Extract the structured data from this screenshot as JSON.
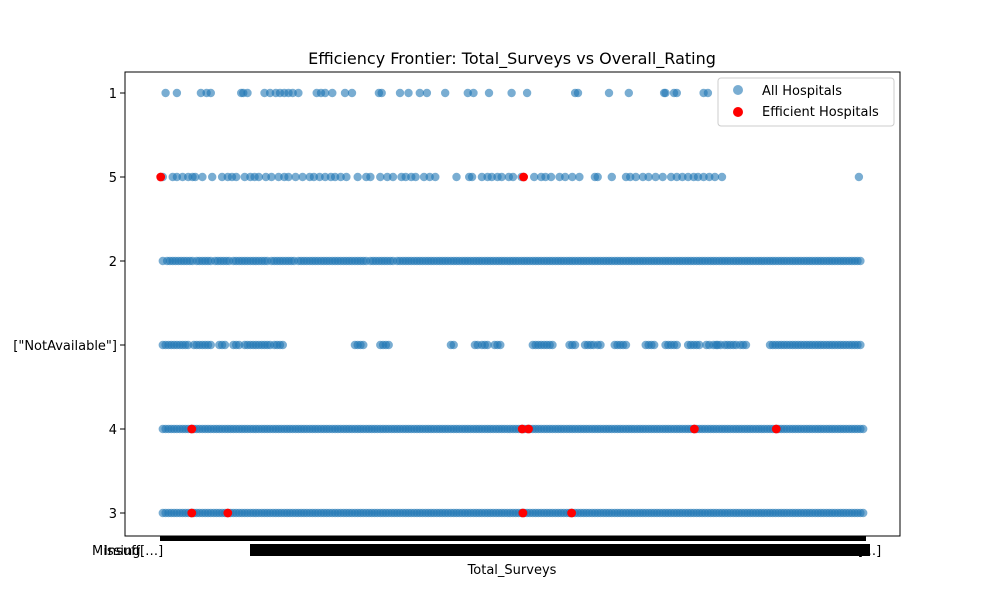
{
  "chart_data": {
    "type": "scatter",
    "title": "Efficiency Frontier: Total_Surveys vs Overall_Rating",
    "xlabel": "Total_Surveys",
    "ylabel": "",
    "y_categories": [
      "3",
      "4",
      "[\"NotAvailable\"]",
      "2",
      "5",
      "1"
    ],
    "x_tick_labels_visible": [
      "Missing",
      "Insuff[…]",
      "[…]"
    ],
    "x_range": [
      0,
      1000
    ],
    "grid": false,
    "legend_position": "top-right",
    "colors": {
      "all": "#1f77b4",
      "efficient": "#ff0000",
      "all_alpha": 0.6
    },
    "series": [
      {
        "name": "All Hospitals",
        "points_by_category": {
          "1": [
            8,
            24,
            58,
            66,
            72,
            115,
            118,
            124,
            148,
            156,
            164,
            170,
            176,
            182,
            188,
            196,
            222,
            228,
            234,
            244,
            262,
            272,
            310,
            314,
            340,
            352,
            368,
            378,
            404,
            436,
            444,
            466,
            498,
            520,
            588,
            592,
            636,
            664,
            714,
            716,
            728,
            732,
            770,
            776
          ],
          "5": [
            4,
            18,
            24,
            32,
            40,
            46,
            50,
            60,
            74,
            88,
            96,
            102,
            108,
            120,
            128,
            134,
            140,
            150,
            158,
            168,
            176,
            182,
            192,
            202,
            212,
            218,
            226,
            234,
            242,
            248,
            256,
            264,
            280,
            292,
            298,
            312,
            322,
            330,
            342,
            348,
            356,
            362,
            374,
            382,
            390,
            420,
            438,
            442,
            456,
            464,
            470,
            478,
            484,
            494,
            500,
            512,
            530,
            540,
            546,
            554,
            566,
            574,
            584,
            594,
            616,
            620,
            640,
            660,
            666,
            674,
            684,
            692,
            702,
            712,
            724,
            732,
            740,
            748,
            756,
            762,
            770,
            778,
            786,
            796,
            990
          ],
          "2": [
            4,
            10,
            14,
            18,
            22,
            26,
            30,
            34,
            38,
            42,
            46,
            52,
            56,
            60,
            64,
            68,
            72,
            78,
            82,
            86,
            90,
            94,
            98,
            104,
            108,
            112,
            116,
            120,
            124,
            128,
            132,
            136,
            140,
            144,
            148,
            152,
            158,
            162,
            166,
            170,
            174,
            178,
            182,
            186,
            190,
            196,
            200,
            204,
            208,
            212,
            216,
            220,
            224,
            228,
            232,
            236,
            240,
            244,
            248,
            252,
            256,
            260,
            264,
            268,
            272,
            276,
            280,
            284,
            288,
            292,
            298,
            302,
            306,
            310,
            314,
            318,
            322,
            326,
            330,
            336,
            340,
            344,
            348,
            352,
            356,
            360,
            364,
            368,
            372,
            376,
            380,
            384,
            388,
            392,
            396,
            400,
            404,
            408,
            412,
            416,
            420,
            424,
            428,
            432,
            436,
            440,
            444,
            448,
            452,
            456,
            460,
            464,
            468,
            472,
            476,
            480,
            484,
            488,
            492,
            496,
            500,
            504,
            508,
            512,
            516,
            520,
            524,
            528,
            532,
            536,
            540,
            544,
            548,
            552,
            556,
            560,
            564,
            568,
            572,
            576,
            580,
            584,
            588,
            592,
            596,
            600,
            604,
            608,
            612,
            616,
            620,
            624,
            628,
            632,
            636,
            640,
            644,
            648,
            652,
            656,
            660,
            664,
            668,
            672,
            676,
            680,
            684,
            688,
            692,
            696,
            700,
            704,
            708,
            712,
            716,
            720,
            724,
            728,
            732,
            736,
            740,
            744,
            748,
            752,
            756,
            760,
            764,
            768,
            772,
            776,
            780,
            784,
            788,
            792,
            796,
            800,
            804,
            808,
            812,
            816,
            820,
            824,
            828,
            832,
            836,
            840,
            844,
            848,
            852,
            856,
            860,
            864,
            868,
            872,
            876,
            880,
            884,
            888,
            892,
            896,
            900,
            904,
            908,
            912,
            916,
            920,
            924,
            928,
            932,
            936,
            940,
            944,
            948,
            952,
            956,
            960,
            964,
            968,
            972,
            976,
            980,
            984,
            988,
            992
          ],
          "[\"NotAvailable\"]": [
            4,
            8,
            12,
            16,
            20,
            24,
            28,
            32,
            36,
            40,
            48,
            52,
            56,
            60,
            64,
            68,
            72,
            84,
            88,
            92,
            104,
            108,
            112,
            120,
            124,
            128,
            132,
            136,
            140,
            144,
            148,
            152,
            156,
            162,
            166,
            170,
            174,
            276,
            280,
            284,
            288,
            312,
            316,
            320,
            324,
            412,
            416,
            446,
            450,
            456,
            460,
            464,
            474,
            478,
            482,
            528,
            532,
            536,
            540,
            544,
            548,
            552,
            556,
            580,
            584,
            588,
            602,
            606,
            610,
            614,
            620,
            624,
            644,
            648,
            652,
            656,
            660,
            688,
            692,
            696,
            700,
            716,
            720,
            724,
            728,
            732,
            748,
            752,
            756,
            760,
            764,
            774,
            778,
            784,
            788,
            790,
            794,
            800,
            804,
            808,
            812,
            816,
            822,
            826,
            830,
            864,
            868,
            872,
            876,
            880,
            884,
            888,
            892,
            896,
            900,
            904,
            908,
            912,
            916,
            920,
            924,
            928,
            932,
            936,
            940,
            944,
            948,
            952,
            956,
            960,
            964,
            968,
            972,
            976,
            980,
            984,
            988,
            992
          ],
          "4": [
            4,
            8,
            12,
            16,
            20,
            24,
            28,
            32,
            36,
            40,
            44,
            48,
            52,
            56,
            60,
            64,
            68,
            72,
            76,
            80,
            84,
            88,
            92,
            96,
            100,
            104,
            108,
            112,
            116,
            120,
            124,
            128,
            132,
            136,
            140,
            144,
            148,
            152,
            156,
            160,
            164,
            168,
            172,
            176,
            180,
            184,
            188,
            192,
            196,
            200,
            204,
            208,
            212,
            216,
            220,
            224,
            228,
            232,
            236,
            240,
            244,
            248,
            252,
            256,
            260,
            264,
            268,
            272,
            276,
            280,
            284,
            288,
            292,
            296,
            300,
            304,
            308,
            312,
            316,
            320,
            324,
            328,
            332,
            336,
            340,
            344,
            348,
            352,
            356,
            360,
            364,
            368,
            372,
            376,
            380,
            384,
            388,
            392,
            396,
            400,
            404,
            408,
            412,
            416,
            420,
            424,
            428,
            432,
            436,
            440,
            444,
            448,
            452,
            456,
            460,
            464,
            468,
            472,
            476,
            480,
            484,
            488,
            492,
            496,
            500,
            504,
            508,
            512,
            516,
            520,
            524,
            528,
            532,
            536,
            540,
            544,
            548,
            552,
            556,
            560,
            564,
            568,
            572,
            576,
            580,
            584,
            588,
            592,
            596,
            600,
            604,
            608,
            612,
            616,
            620,
            624,
            628,
            632,
            636,
            640,
            644,
            648,
            652,
            656,
            660,
            664,
            668,
            672,
            676,
            680,
            684,
            688,
            692,
            696,
            700,
            704,
            708,
            712,
            716,
            720,
            724,
            728,
            732,
            736,
            740,
            744,
            748,
            752,
            756,
            760,
            764,
            768,
            772,
            776,
            780,
            784,
            788,
            792,
            796,
            800,
            804,
            808,
            812,
            816,
            820,
            824,
            828,
            832,
            836,
            840,
            844,
            848,
            852,
            856,
            860,
            864,
            868,
            872,
            876,
            880,
            884,
            888,
            892,
            896,
            900,
            904,
            908,
            912,
            916,
            920,
            924,
            928,
            932,
            936,
            940,
            944,
            948,
            952,
            956,
            960,
            964,
            968,
            972,
            976,
            980,
            984,
            988,
            992,
            996
          ],
          "3": [
            4,
            8,
            12,
            16,
            20,
            24,
            28,
            32,
            36,
            40,
            44,
            48,
            52,
            56,
            60,
            64,
            68,
            72,
            76,
            80,
            84,
            88,
            92,
            96,
            100,
            104,
            108,
            112,
            116,
            120,
            124,
            128,
            132,
            136,
            140,
            144,
            148,
            152,
            156,
            160,
            164,
            168,
            172,
            176,
            180,
            184,
            188,
            192,
            196,
            200,
            204,
            208,
            212,
            216,
            220,
            224,
            228,
            232,
            236,
            240,
            244,
            248,
            252,
            256,
            260,
            264,
            268,
            272,
            276,
            280,
            284,
            288,
            292,
            296,
            300,
            304,
            308,
            312,
            316,
            320,
            324,
            328,
            332,
            336,
            340,
            344,
            348,
            352,
            356,
            360,
            364,
            368,
            372,
            376,
            380,
            384,
            388,
            392,
            396,
            400,
            404,
            408,
            412,
            416,
            420,
            424,
            428,
            432,
            436,
            440,
            444,
            448,
            452,
            456,
            460,
            464,
            468,
            472,
            476,
            480,
            484,
            488,
            492,
            496,
            500,
            504,
            508,
            512,
            516,
            520,
            524,
            528,
            532,
            536,
            540,
            544,
            548,
            552,
            556,
            560,
            564,
            568,
            572,
            576,
            580,
            584,
            588,
            592,
            596,
            600,
            604,
            608,
            612,
            616,
            620,
            624,
            628,
            632,
            636,
            640,
            644,
            648,
            652,
            656,
            660,
            664,
            668,
            672,
            676,
            680,
            684,
            688,
            692,
            696,
            700,
            704,
            708,
            712,
            716,
            720,
            724,
            728,
            732,
            736,
            740,
            744,
            748,
            752,
            756,
            760,
            764,
            768,
            772,
            776,
            780,
            784,
            788,
            792,
            796,
            800,
            804,
            808,
            812,
            816,
            820,
            824,
            828,
            832,
            836,
            840,
            844,
            848,
            852,
            856,
            860,
            864,
            868,
            872,
            876,
            880,
            884,
            888,
            892,
            896,
            900,
            904,
            908,
            912,
            916,
            920,
            924,
            928,
            932,
            936,
            940,
            944,
            948,
            952,
            956,
            960,
            964,
            968,
            972,
            976,
            980,
            984,
            988,
            992,
            996
          ]
        }
      },
      {
        "name": "Efficient Hospitals",
        "points": [
          {
            "x": 1,
            "y": "5"
          },
          {
            "x": 515,
            "y": "5"
          },
          {
            "x": 45,
            "y": "4"
          },
          {
            "x": 513,
            "y": "4"
          },
          {
            "x": 522,
            "y": "4"
          },
          {
            "x": 757,
            "y": "4"
          },
          {
            "x": 873,
            "y": "4"
          },
          {
            "x": 45,
            "y": "3"
          },
          {
            "x": 96,
            "y": "3"
          },
          {
            "x": 514,
            "y": "3"
          },
          {
            "x": 583,
            "y": "3"
          }
        ]
      }
    ]
  }
}
